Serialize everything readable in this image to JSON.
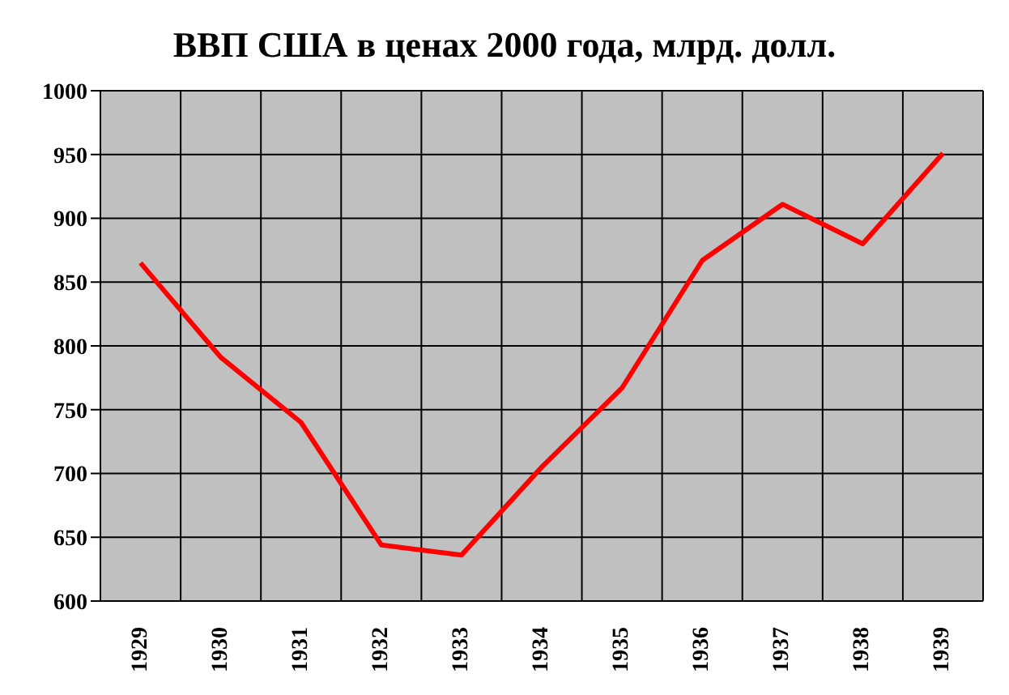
{
  "chart_data": {
    "type": "line",
    "title": "ВВП США в ценах 2000 года, млрд. долл.",
    "categories": [
      "1929",
      "1930",
      "1931",
      "1932",
      "1933",
      "1934",
      "1935",
      "1936",
      "1937",
      "1938",
      "1939"
    ],
    "series": [
      {
        "color": "#ff0000",
        "values": [
          865,
          791,
          740,
          644,
          636,
          705,
          767,
          867,
          911,
          880,
          951
        ]
      }
    ],
    "ylim": [
      600,
      1000
    ],
    "yticks": [
      600,
      650,
      700,
      750,
      800,
      850,
      900,
      950,
      1000
    ],
    "grid": true,
    "marker": "none",
    "line_style": "solid"
  }
}
